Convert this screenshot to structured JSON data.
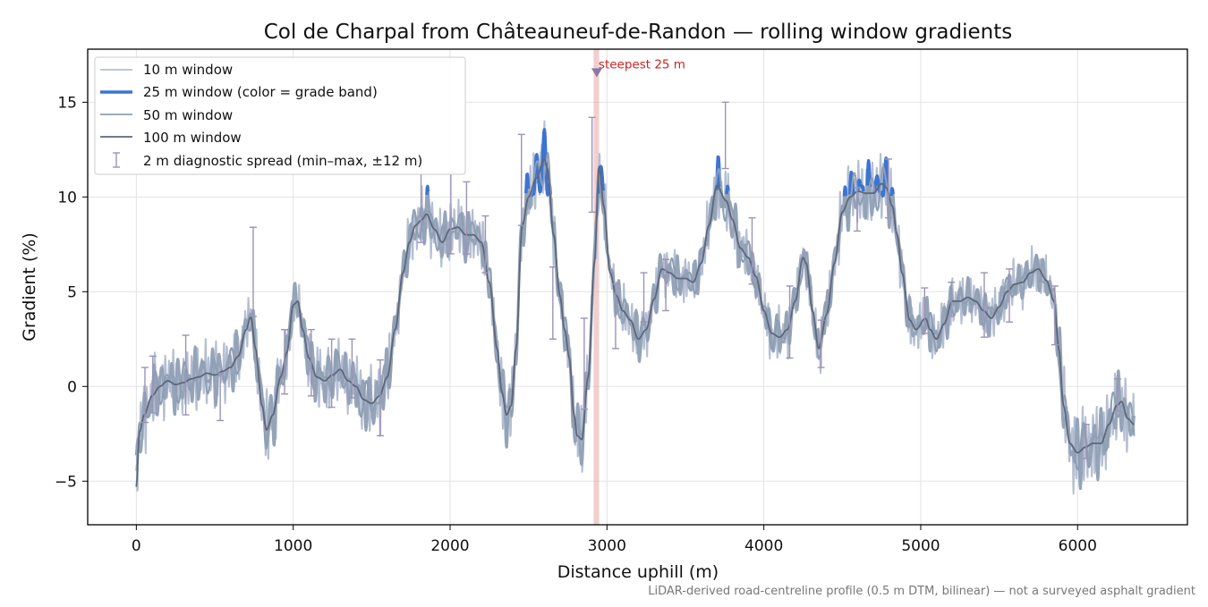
{
  "colors": {
    "w10": "#b4bed2",
    "w25_base": "#94a3b8",
    "w25_highlight": "#3b74d2",
    "w50": "#8f9fb3",
    "w100": "#5e667a",
    "errorbar": "#9c93b6",
    "marker": "#8878a4",
    "steep_band": "#e8a8a8",
    "steep_text": "#cc2222",
    "grid": "#e3e3e3",
    "footnote": "#777777"
  },
  "chart_data": {
    "type": "line",
    "title": "Col de Charpal from Châteauneuf-de-Randon — rolling window gradients",
    "xlabel": "Distance uphill (m)",
    "ylabel": "Gradient (%)",
    "xlim": [
      -310,
      6700
    ],
    "ylim": [
      -7.3,
      17.8
    ],
    "xticks": [
      0,
      1000,
      2000,
      3000,
      4000,
      5000,
      6000
    ],
    "yticks": [
      -5,
      0,
      5,
      10,
      15
    ],
    "ytick_labels": [
      "−5",
      "0",
      "5",
      "10",
      "15"
    ],
    "grid": true,
    "legend_position": "top-left",
    "legend": [
      "10 m window",
      "25 m window (color = grade band)",
      "50 m window",
      "100 m window",
      "2 m diagnostic spread (min–max, ±12 m)"
    ],
    "footnote": "LiDAR-derived road-centreline profile (0.5 m DTM, bilinear) — not a surveyed asphalt gradient",
    "annotation": {
      "text": "steepest 25 m",
      "x": 2935,
      "y": 16.6,
      "band_x": [
        2915,
        2950
      ]
    },
    "highlight_threshold": 10,
    "profile_100m": [
      [
        0,
        -5.3
      ],
      [
        20,
        -2.4
      ],
      [
        50,
        -1.5
      ],
      [
        100,
        -0.5
      ],
      [
        150,
        0.0
      ],
      [
        200,
        0.3
      ],
      [
        250,
        0.1
      ],
      [
        300,
        0.2
      ],
      [
        350,
        0.4
      ],
      [
        400,
        0.5
      ],
      [
        450,
        0.7
      ],
      [
        500,
        0.6
      ],
      [
        550,
        0.8
      ],
      [
        600,
        1.0
      ],
      [
        650,
        1.6
      ],
      [
        700,
        3.0
      ],
      [
        730,
        3.7
      ],
      [
        760,
        2.0
      ],
      [
        800,
        -1.0
      ],
      [
        830,
        -2.3
      ],
      [
        870,
        -1.5
      ],
      [
        920,
        0.5
      ],
      [
        960,
        1.8
      ],
      [
        1000,
        4.3
      ],
      [
        1030,
        4.5
      ],
      [
        1060,
        3.0
      ],
      [
        1100,
        1.5
      ],
      [
        1150,
        0.5
      ],
      [
        1200,
        0.3
      ],
      [
        1250,
        0.6
      ],
      [
        1300,
        0.9
      ],
      [
        1350,
        0.3
      ],
      [
        1400,
        0.0
      ],
      [
        1450,
        -0.7
      ],
      [
        1500,
        -0.9
      ],
      [
        1550,
        -0.5
      ],
      [
        1600,
        0.5
      ],
      [
        1650,
        3.0
      ],
      [
        1700,
        6.0
      ],
      [
        1740,
        7.6
      ],
      [
        1780,
        8.5
      ],
      [
        1820,
        8.8
      ],
      [
        1850,
        9.1
      ],
      [
        1900,
        8.3
      ],
      [
        1950,
        7.6
      ],
      [
        2000,
        8.3
      ],
      [
        2050,
        8.4
      ],
      [
        2100,
        8.0
      ],
      [
        2150,
        8.0
      ],
      [
        2200,
        7.6
      ],
      [
        2250,
        5.5
      ],
      [
        2300,
        2.0
      ],
      [
        2330,
        -0.3
      ],
      [
        2360,
        -1.5
      ],
      [
        2390,
        -1.0
      ],
      [
        2420,
        2.0
      ],
      [
        2460,
        8.5
      ],
      [
        2500,
        10.0
      ],
      [
        2550,
        11.0
      ],
      [
        2600,
        12.0
      ],
      [
        2620,
        11.5
      ],
      [
        2660,
        8.0
      ],
      [
        2700,
        4.8
      ],
      [
        2730,
        3.0
      ],
      [
        2760,
        1.5
      ],
      [
        2790,
        -1.5
      ],
      [
        2810,
        -2.6
      ],
      [
        2840,
        -2.8
      ],
      [
        2880,
        0.5
      ],
      [
        2920,
        6.5
      ],
      [
        2950,
        11.6
      ],
      [
        2980,
        9.5
      ],
      [
        3020,
        6.0
      ],
      [
        3060,
        4.8
      ],
      [
        3100,
        4.0
      ],
      [
        3150,
        3.5
      ],
      [
        3200,
        2.5
      ],
      [
        3250,
        3.0
      ],
      [
        3300,
        4.6
      ],
      [
        3350,
        6.2
      ],
      [
        3400,
        6.0
      ],
      [
        3450,
        5.7
      ],
      [
        3500,
        5.7
      ],
      [
        3550,
        5.5
      ],
      [
        3600,
        6.5
      ],
      [
        3650,
        8.5
      ],
      [
        3700,
        10.6
      ],
      [
        3760,
        9.8
      ],
      [
        3800,
        8.8
      ],
      [
        3850,
        7.3
      ],
      [
        3900,
        6.8
      ],
      [
        3950,
        5.8
      ],
      [
        4000,
        4.0
      ],
      [
        4050,
        2.8
      ],
      [
        4100,
        2.6
      ],
      [
        4150,
        3.0
      ],
      [
        4200,
        4.5
      ],
      [
        4250,
        6.8
      ],
      [
        4270,
        6.5
      ],
      [
        4310,
        4.0
      ],
      [
        4350,
        2.0
      ],
      [
        4400,
        3.8
      ],
      [
        4450,
        6.5
      ],
      [
        4500,
        9.2
      ],
      [
        4550,
        10.0
      ],
      [
        4600,
        10.3
      ],
      [
        4650,
        10.2
      ],
      [
        4700,
        10.2
      ],
      [
        4750,
        10.7
      ],
      [
        4780,
        10.5
      ],
      [
        4820,
        9.5
      ],
      [
        4850,
        8.0
      ],
      [
        4880,
        6.0
      ],
      [
        4930,
        3.5
      ],
      [
        4970,
        3.0
      ],
      [
        5030,
        3.6
      ],
      [
        5060,
        3.0
      ],
      [
        5100,
        2.5
      ],
      [
        5150,
        3.3
      ],
      [
        5200,
        4.5
      ],
      [
        5250,
        4.5
      ],
      [
        5300,
        4.7
      ],
      [
        5350,
        4.5
      ],
      [
        5400,
        4.0
      ],
      [
        5450,
        3.6
      ],
      [
        5500,
        4.2
      ],
      [
        5550,
        5.0
      ],
      [
        5600,
        5.4
      ],
      [
        5650,
        5.5
      ],
      [
        5700,
        6.0
      ],
      [
        5750,
        6.2
      ],
      [
        5800,
        5.6
      ],
      [
        5850,
        4.5
      ],
      [
        5880,
        2.0
      ],
      [
        5910,
        -1.0
      ],
      [
        5950,
        -3.0
      ],
      [
        6000,
        -3.5
      ],
      [
        6050,
        -3.2
      ],
      [
        6100,
        -3.0
      ],
      [
        6150,
        -3.0
      ],
      [
        6200,
        -2.0
      ],
      [
        6250,
        -1.0
      ],
      [
        6280,
        -0.8
      ],
      [
        6320,
        -1.7
      ],
      [
        6360,
        -2.0
      ]
    ],
    "error_bars": [
      [
        55,
        -1.9,
        1.0
      ],
      [
        105,
        -1.4,
        1.6
      ],
      [
        315,
        -1.5,
        2.7
      ],
      [
        535,
        -1.8,
        0.7
      ],
      [
        745,
        3.7,
        8.4
      ],
      [
        945,
        -0.4,
        3.0
      ],
      [
        1115,
        -0.5,
        3.0
      ],
      [
        1245,
        -1.1,
        2.5
      ],
      [
        1375,
        -0.6,
        2.5
      ],
      [
        1555,
        -2.6,
        1.4
      ],
      [
        1815,
        7.6,
        12.0
      ],
      [
        2005,
        7.0,
        11.3
      ],
      [
        2105,
        7.0,
        10.8
      ],
      [
        2225,
        6.0,
        9.0
      ],
      [
        2455,
        8.5,
        13.3
      ],
      [
        2655,
        2.5,
        6.3
      ],
      [
        2855,
        -1.2,
        3.6
      ],
      [
        2905,
        9.2,
        14.2
      ],
      [
        3055,
        2.0,
        5.4
      ],
      [
        3235,
        3.4,
        6.0
      ],
      [
        3375,
        4.0,
        6.7
      ],
      [
        3755,
        11.5,
        15.0
      ],
      [
        3925,
        5.4,
        8.9
      ],
      [
        4165,
        1.5,
        5.3
      ],
      [
        4365,
        1.0,
        3.5
      ],
      [
        4595,
        8.2,
        10.5
      ],
      [
        4795,
        8.9,
        12.0
      ],
      [
        5025,
        2.8,
        5.2
      ],
      [
        5195,
        3.7,
        5.5
      ],
      [
        5405,
        2.6,
        6.0
      ],
      [
        5565,
        3.4,
        6.2
      ],
      [
        5855,
        2.2,
        5.3
      ],
      [
        6055,
        -3.8,
        -2.0
      ],
      [
        6255,
        -1.3,
        0.4
      ]
    ]
  }
}
